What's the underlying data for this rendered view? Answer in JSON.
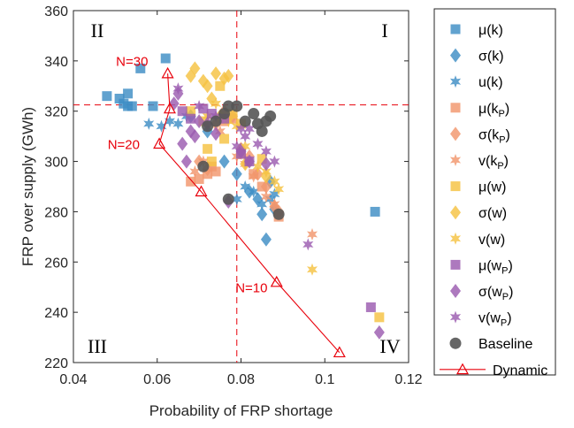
{
  "chart_data": {
    "type": "scatter",
    "title": "",
    "xlabel": "Probability of FRP shortage",
    "ylabel": "FRP over supply (GWh)",
    "xlim": [
      0.04,
      0.12
    ],
    "ylim": [
      220,
      360
    ],
    "xticks": [
      "0.04",
      "0.06",
      "0.08",
      "0.1",
      "0.12"
    ],
    "yticks": [
      "220",
      "240",
      "260",
      "280",
      "300",
      "320",
      "340",
      "360"
    ],
    "legend_position": "right-outside",
    "reference_lines": {
      "x": 0.079,
      "y": 322.5,
      "color": "#e8000b"
    },
    "quadrant_labels": [
      "I",
      "II",
      "III",
      "IV"
    ],
    "annotations": [
      {
        "text": "N=30",
        "x": 0.054,
        "y": 338
      },
      {
        "text": "N=20",
        "x": 0.052,
        "y": 305
      },
      {
        "text": "N=10",
        "x": 0.0825,
        "y": 248
      }
    ],
    "series": [
      {
        "name": "μ(k)",
        "legend": {
          "main": "μ(k)",
          "sub": ""
        },
        "marker": "square",
        "color": "#3e8ec4",
        "points": [
          [
            0.048,
            326
          ],
          [
            0.051,
            325
          ],
          [
            0.052,
            323
          ],
          [
            0.053,
            322
          ],
          [
            0.053,
            327
          ],
          [
            0.054,
            322
          ],
          [
            0.056,
            337
          ],
          [
            0.059,
            322
          ],
          [
            0.062,
            341
          ],
          [
            0.112,
            280
          ]
        ]
      },
      {
        "name": "σ(k)",
        "legend": {
          "main": "σ(k)",
          "sub": ""
        },
        "marker": "diamond",
        "color": "#3e8ec4",
        "points": [
          [
            0.068,
            318
          ],
          [
            0.072,
            312
          ],
          [
            0.076,
            300
          ],
          [
            0.079,
            295
          ],
          [
            0.082,
            288
          ],
          [
            0.084,
            285
          ],
          [
            0.085,
            279
          ],
          [
            0.086,
            269
          ],
          [
            0.087,
            292
          ],
          [
            0.088,
            281
          ]
        ]
      },
      {
        "name": "u(k)",
        "legend": {
          "main": "u(k)",
          "sub": ""
        },
        "marker": "star",
        "color": "#3e8ec4",
        "points": [
          [
            0.058,
            315
          ],
          [
            0.061,
            314
          ],
          [
            0.063,
            316
          ],
          [
            0.065,
            315
          ],
          [
            0.067,
            318
          ],
          [
            0.079,
            285
          ],
          [
            0.081,
            290
          ],
          [
            0.083,
            288
          ],
          [
            0.085,
            283
          ],
          [
            0.087,
            285
          ],
          [
            0.088,
            287
          ]
        ]
      },
      {
        "name": "μ(kP)",
        "legend": {
          "main": "μ(k",
          "sub": "P"
        },
        "marker": "square",
        "color": "#f2966c",
        "points": [
          [
            0.068,
            292
          ],
          [
            0.07,
            293
          ],
          [
            0.072,
            295
          ],
          [
            0.073,
            298
          ],
          [
            0.074,
            296
          ],
          [
            0.076,
            316
          ],
          [
            0.078,
            317
          ],
          [
            0.08,
            303
          ],
          [
            0.083,
            295
          ],
          [
            0.085,
            290
          ],
          [
            0.089,
            278
          ]
        ]
      },
      {
        "name": "σ(kP)",
        "legend": {
          "main": "σ(k",
          "sub": "P"
        },
        "marker": "diamond",
        "color": "#f2966c",
        "points": [
          [
            0.07,
            300
          ],
          [
            0.072,
            297
          ],
          [
            0.074,
            315
          ],
          [
            0.076,
            320
          ],
          [
            0.078,
            318
          ],
          [
            0.08,
            305
          ],
          [
            0.082,
            302
          ],
          [
            0.084,
            295
          ],
          [
            0.086,
            290
          ],
          [
            0.088,
            282
          ],
          [
            0.089,
            280
          ]
        ]
      },
      {
        "name": "v(kP)",
        "legend": {
          "main": "v(k",
          "sub": "P"
        },
        "marker": "star",
        "color": "#f2966c",
        "points": [
          [
            0.069,
            296
          ],
          [
            0.071,
            300
          ],
          [
            0.075,
            312
          ],
          [
            0.079,
            302
          ],
          [
            0.081,
            299
          ],
          [
            0.083,
            294
          ],
          [
            0.086,
            286
          ],
          [
            0.088,
            283
          ],
          [
            0.097,
            271
          ]
        ]
      },
      {
        "name": "μ(w)",
        "legend": {
          "main": "μ(w)",
          "sub": ""
        },
        "marker": "square",
        "color": "#f5c242",
        "points": [
          [
            0.068,
            320
          ],
          [
            0.071,
            316
          ],
          [
            0.072,
            305
          ],
          [
            0.073,
            300
          ],
          [
            0.075,
            330
          ],
          [
            0.076,
            309
          ],
          [
            0.078,
            319
          ],
          [
            0.08,
            315
          ],
          [
            0.085,
            301
          ],
          [
            0.113,
            238
          ]
        ]
      },
      {
        "name": "σ(w)",
        "legend": {
          "main": "σ(w)",
          "sub": ""
        },
        "marker": "diamond",
        "color": "#f5c242",
        "points": [
          [
            0.068,
            334
          ],
          [
            0.069,
            337
          ],
          [
            0.071,
            332
          ],
          [
            0.072,
            330
          ],
          [
            0.074,
            335
          ],
          [
            0.076,
            333
          ],
          [
            0.077,
            334
          ],
          [
            0.073,
            325
          ],
          [
            0.075,
            318
          ],
          [
            0.081,
            299
          ],
          [
            0.086,
            294
          ]
        ]
      },
      {
        "name": "v(w)",
        "legend": {
          "main": "v(w)",
          "sub": ""
        },
        "marker": "star",
        "color": "#f5c242",
        "points": [
          [
            0.072,
            318
          ],
          [
            0.074,
            323
          ],
          [
            0.077,
            316
          ],
          [
            0.079,
            314
          ],
          [
            0.081,
            306
          ],
          [
            0.084,
            298
          ],
          [
            0.086,
            296
          ],
          [
            0.088,
            292
          ],
          [
            0.089,
            289
          ],
          [
            0.097,
            257
          ]
        ]
      },
      {
        "name": "μ(wP)",
        "legend": {
          "main": "μ(w",
          "sub": "P"
        },
        "marker": "square",
        "color": "#9b5bb0",
        "points": [
          [
            0.066,
            320
          ],
          [
            0.068,
            317
          ],
          [
            0.071,
            321
          ],
          [
            0.073,
            319
          ],
          [
            0.076,
            317
          ],
          [
            0.08,
            303
          ],
          [
            0.082,
            300
          ],
          [
            0.111,
            242
          ]
        ]
      },
      {
        "name": "σ(wP)",
        "legend": {
          "main": "σ(w",
          "sub": "P"
        },
        "marker": "diamond",
        "color": "#9b5bb0",
        "points": [
          [
            0.064,
            323
          ],
          [
            0.065,
            327
          ],
          [
            0.066,
            307
          ],
          [
            0.067,
            300
          ],
          [
            0.068,
            312
          ],
          [
            0.069,
            310
          ],
          [
            0.07,
            316
          ],
          [
            0.072,
            315
          ],
          [
            0.074,
            311
          ],
          [
            0.077,
            284
          ],
          [
            0.08,
            304
          ],
          [
            0.082,
            300
          ],
          [
            0.086,
            299
          ],
          [
            0.113,
            232
          ]
        ]
      },
      {
        "name": "v(wP)",
        "legend": {
          "main": "v(w",
          "sub": "P"
        },
        "marker": "star",
        "color": "#9b5bb0",
        "points": [
          [
            0.065,
            329
          ],
          [
            0.07,
            322
          ],
          [
            0.074,
            318
          ],
          [
            0.079,
            306
          ],
          [
            0.08,
            313
          ],
          [
            0.081,
            310
          ],
          [
            0.082,
            313
          ],
          [
            0.084,
            307
          ],
          [
            0.086,
            304
          ],
          [
            0.088,
            300
          ],
          [
            0.096,
            267
          ]
        ]
      },
      {
        "name": "Baseline",
        "legend": {
          "main": "Baseline",
          "sub": ""
        },
        "marker": "circle",
        "color": "#555555",
        "points": [
          [
            0.071,
            298
          ],
          [
            0.072,
            314
          ],
          [
            0.074,
            316
          ],
          [
            0.076,
            319
          ],
          [
            0.077,
            322
          ],
          [
            0.079,
            322
          ],
          [
            0.081,
            316
          ],
          [
            0.083,
            319
          ],
          [
            0.084,
            315
          ],
          [
            0.085,
            312
          ],
          [
            0.086,
            316
          ],
          [
            0.087,
            318
          ],
          [
            0.077,
            285
          ],
          [
            0.089,
            279
          ]
        ]
      },
      {
        "name": "Dynamic",
        "legend": {
          "main": "Dynamic",
          "sub": ""
        },
        "marker": "triangle-line",
        "color": "#e8000b",
        "points": [
          [
            0.0625,
            335
          ],
          [
            0.063,
            321
          ],
          [
            0.0605,
            307
          ],
          [
            0.0705,
            288
          ],
          [
            0.0885,
            252
          ],
          [
            0.1035,
            224
          ]
        ]
      }
    ]
  }
}
